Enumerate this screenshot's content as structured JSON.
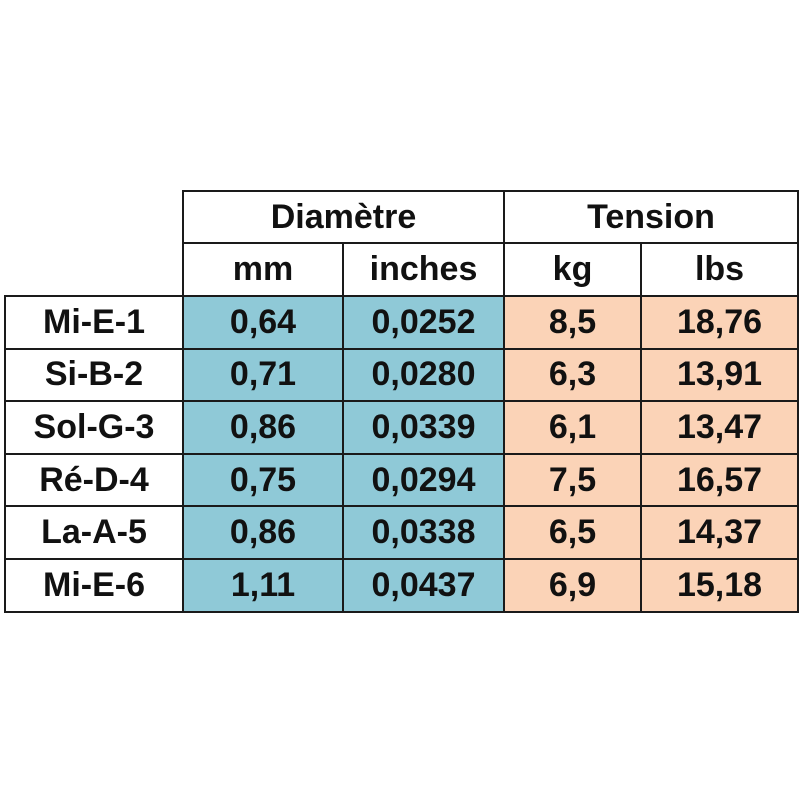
{
  "table": {
    "groups": [
      "Diamètre",
      "Tension"
    ],
    "columns": [
      "mm",
      "inches",
      "kg",
      "lbs"
    ],
    "rows": [
      [
        "Mi-E-1",
        "0,64",
        "0,0252",
        "8,5",
        "18,76"
      ],
      [
        "Si-B-2",
        "0,71",
        "0,0280",
        "6,3",
        "13,91"
      ],
      [
        "Sol-G-3",
        "0,86",
        "0,0339",
        "6,1",
        "13,47"
      ],
      [
        "Ré-D-4",
        "0,75",
        "0,0294",
        "7,5",
        "16,57"
      ],
      [
        "La-A-5",
        "0,86",
        "0,0338",
        "6,5",
        "14,37"
      ],
      [
        "Mi-E-6",
        "1,11",
        "0,0437",
        "6,9",
        "15,18"
      ]
    ]
  }
}
